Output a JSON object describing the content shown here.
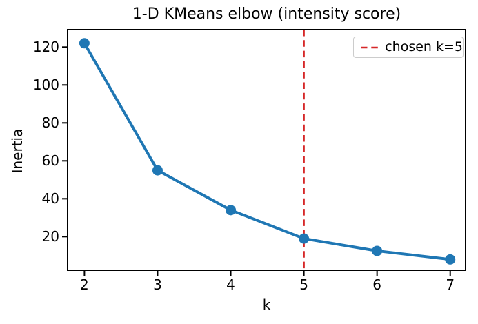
{
  "figure": {
    "legend": {
      "label": "chosen k=5"
    }
  },
  "chart_data": {
    "type": "line",
    "title": "1-D KMeans elbow (intensity score)",
    "xlabel": "k",
    "ylabel": "Inertia",
    "x": [
      2,
      3,
      4,
      5,
      6,
      7
    ],
    "series": [
      {
        "name": "inertia",
        "values": [
          122,
          55,
          34,
          19,
          12.5,
          8
        ]
      }
    ],
    "annotations": [
      {
        "type": "vline",
        "x": 5,
        "label": "chosen k=5",
        "style": "dashed",
        "color": "#d62728"
      }
    ],
    "xticks": [
      2,
      3,
      4,
      5,
      6,
      7
    ],
    "yticks": [
      20,
      40,
      60,
      80,
      100,
      120
    ],
    "xlim": [
      1.77,
      7.21
    ],
    "ylim": [
      2.3,
      129.2
    ],
    "grid": false,
    "legend_position": "upper right",
    "colors": {
      "line": "#1f77b4",
      "marker": "#1f77b4",
      "vline": "#d62728",
      "spine": "#000000"
    },
    "marker": "circle",
    "marker_radius": 7.5,
    "line_width": 4
  }
}
